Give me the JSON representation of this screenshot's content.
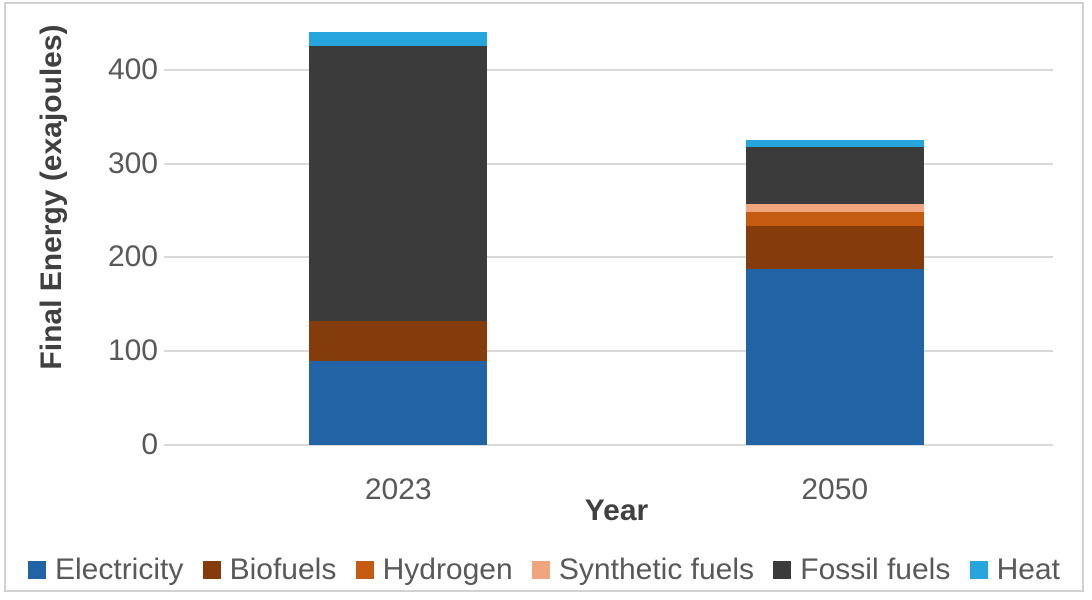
{
  "chart_data": {
    "type": "bar",
    "stacked": true,
    "title": "",
    "xlabel": "Year",
    "ylabel": "Final Energy (exajoules)",
    "categories": [
      "2023",
      "2050"
    ],
    "series": [
      {
        "name": "Electricity",
        "color": "#2163a4",
        "values": [
          90,
          188
        ]
      },
      {
        "name": "Biofuels",
        "color": "#843c0c",
        "values": [
          42,
          45
        ]
      },
      {
        "name": "Hydrogen",
        "color": "#c55a11",
        "values": [
          0,
          15
        ]
      },
      {
        "name": "Synthetic fuels",
        "color": "#f0a57e",
        "values": [
          0,
          9
        ]
      },
      {
        "name": "Fossil fuels",
        "color": "#3b3b3b",
        "values": [
          293,
          61
        ]
      },
      {
        "name": "Heat",
        "color": "#27a6dd",
        "values": [
          15,
          7
        ]
      }
    ],
    "stack_totals": [
      440,
      325
    ],
    "y_ticks": [
      0,
      100,
      200,
      300,
      400
    ],
    "ylim": [
      0,
      453
    ],
    "grid": true,
    "legend_position": "bottom"
  },
  "colors": {
    "gridline": "#d9d9d9",
    "axis_tick_text": "#595959",
    "axis_title_text": "#404040",
    "frame_border": "#d2d2d2",
    "background": "#ffffff"
  }
}
